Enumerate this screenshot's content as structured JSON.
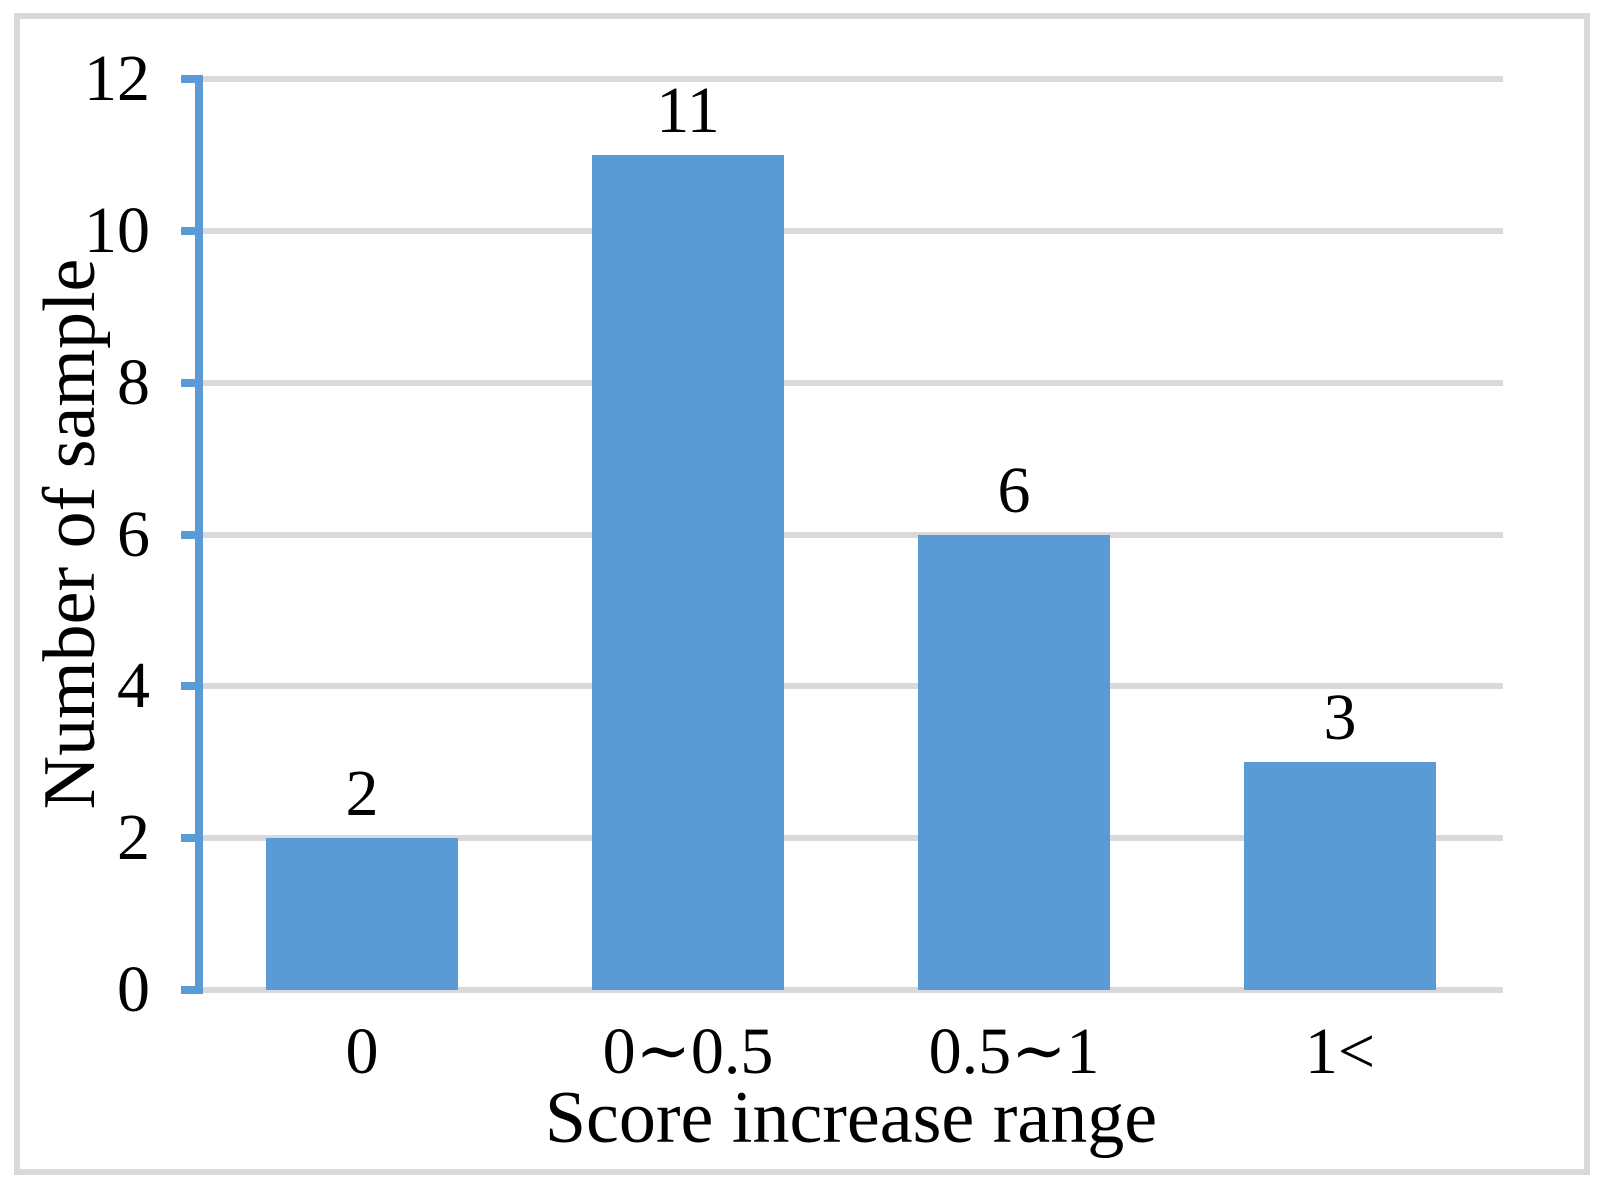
{
  "chart_data": {
    "type": "bar",
    "categories": [
      "0",
      "0∼0.5",
      "0.5∼1",
      "1<"
    ],
    "values": [
      2,
      11,
      6,
      3
    ],
    "xlabel": "Score increase range",
    "ylabel": "Number of sample",
    "ylim": [
      0,
      12
    ],
    "yticks": [
      0,
      2,
      4,
      6,
      8,
      10,
      12
    ],
    "grid": "horizontal",
    "legend": "none",
    "colors": {
      "bar": "#5B9BD5",
      "axis": "#5B9BD5",
      "gridline": "#D9D9D9",
      "border": "#D9D9D9",
      "text": "#000000",
      "background": "#FFFFFF"
    }
  }
}
